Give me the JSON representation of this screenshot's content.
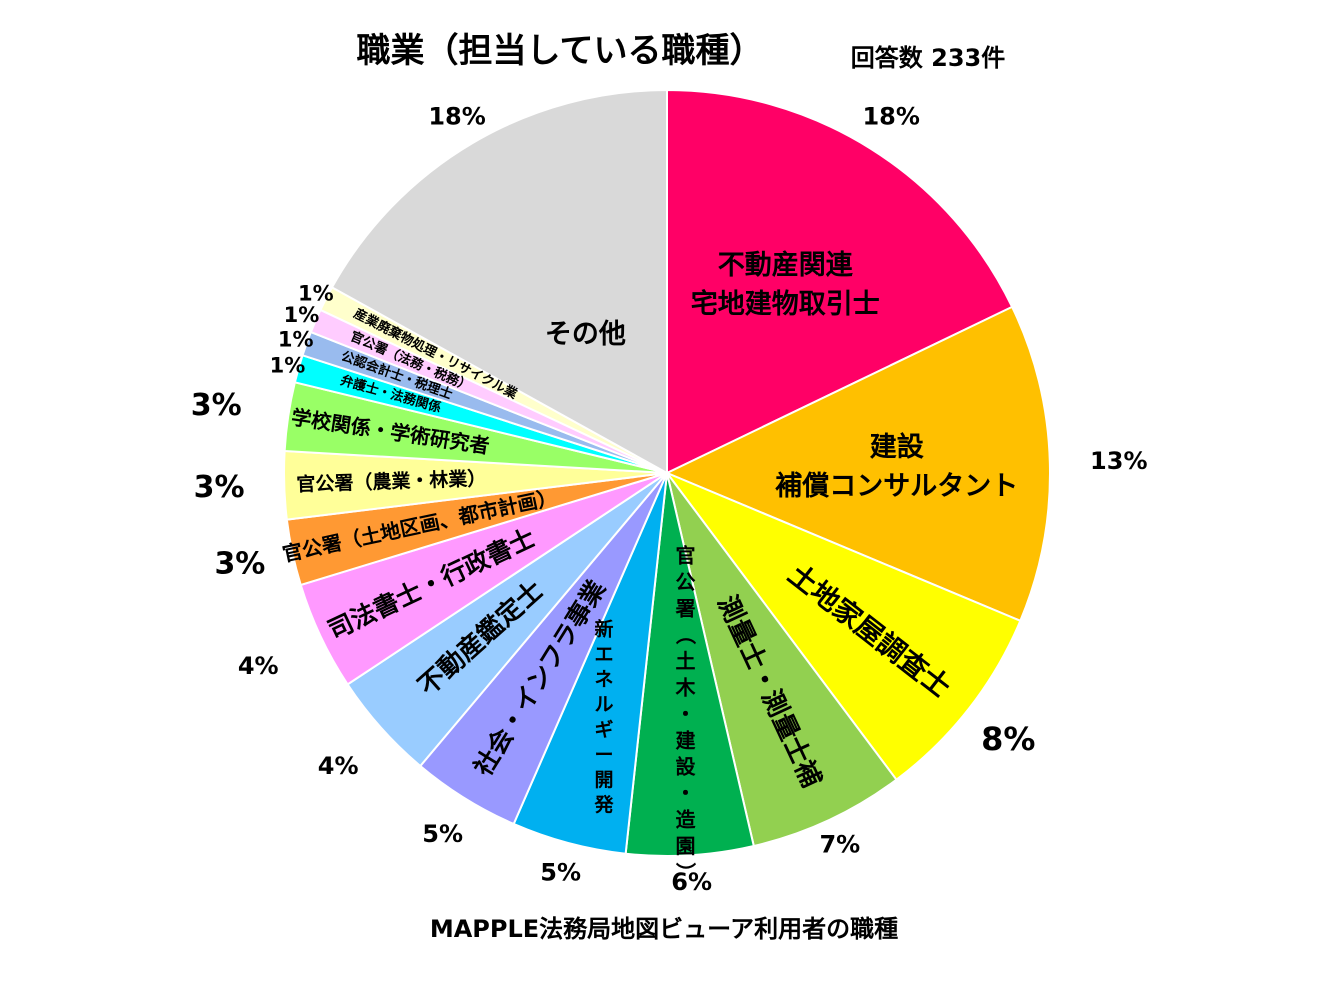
{
  "chart_data": {
    "type": "pie",
    "title": "職業（担当している職種）",
    "response_count": "回答数 233件",
    "caption": "MAPPLE法務局地図ビューア利用者の職種",
    "start_angle_deg": 0,
    "direction": "clockwise",
    "slices": [
      {
        "label": "不動産関連 宅地建物取引士",
        "lines": [
          "不動産関連",
          "宅地建物取引士"
        ],
        "percent_label": "18%",
        "color": "#FF0066"
      },
      {
        "label": "建設 補償コンサルタント",
        "lines": [
          "建設",
          "補償コンサルタント"
        ],
        "percent_label": "13%",
        "color": "#FFC000"
      },
      {
        "label": "土地家屋調査士",
        "lines": [
          "土地家屋調査士"
        ],
        "percent_label": "8%",
        "color": "#FFFF00"
      },
      {
        "label": "測量士・測量士補",
        "lines": [
          "測量士・測量士補"
        ],
        "percent_label": "7%",
        "color": "#92D050"
      },
      {
        "label": "官公署（土木・建設・造園）",
        "lines": [
          "官公署（土木・建設・造園）"
        ],
        "percent_label": "6%",
        "color": "#00B050"
      },
      {
        "label": "新エネルギー開発",
        "lines": [
          "新エネルギー開発"
        ],
        "percent_label": "5%",
        "color": "#00B0F0"
      },
      {
        "label": "社会・インフラ事業",
        "lines": [
          "社会・インフラ事業"
        ],
        "percent_label": "5%",
        "color": "#9999FF"
      },
      {
        "label": "不動産鑑定士",
        "lines": [
          "不動産鑑定士"
        ],
        "percent_label": "4%",
        "color": "#99CCFF"
      },
      {
        "label": "司法書士・行政書士",
        "lines": [
          "司法書士・行政書士"
        ],
        "percent_label": "4%",
        "color": "#FF99FF"
      },
      {
        "label": "官公署（土地区画、都市計画）",
        "lines": [
          "官公署（土地区画、都市計画）"
        ],
        "percent_label": "3%",
        "color": "#FF9933"
      },
      {
        "label": "官公署（農業・林業）",
        "lines": [
          "官公署（農業・林業）"
        ],
        "percent_label": "3%",
        "color": "#FFFF99"
      },
      {
        "label": "学校関係・学術研究者",
        "lines": [
          "学校関係・学術研究者"
        ],
        "percent_label": "3%",
        "color": "#99FF66"
      },
      {
        "label": "弁護士・法務関係",
        "lines": [
          "弁護士・法務関係"
        ],
        "percent_label": "1%",
        "color": "#00FFFF"
      },
      {
        "label": "公認会計士・税理士",
        "lines": [
          "公認会計士・税理士"
        ],
        "percent_label": "1%",
        "color": "#99BBEE"
      },
      {
        "label": "官公署（法務・税務）",
        "lines": [
          "官公署（法務・税務）"
        ],
        "percent_label": "1%",
        "color": "#FFCCFF"
      },
      {
        "label": "産業廃棄物処理・リサイクル業",
        "lines": [
          "産業廃棄物処理・リサイクル業"
        ],
        "percent_label": "1%",
        "color": "#FFFFCC"
      },
      {
        "label": "その他",
        "lines": [
          "その他"
        ],
        "percent_label": "18%",
        "color": "#D9D9D9"
      }
    ]
  }
}
